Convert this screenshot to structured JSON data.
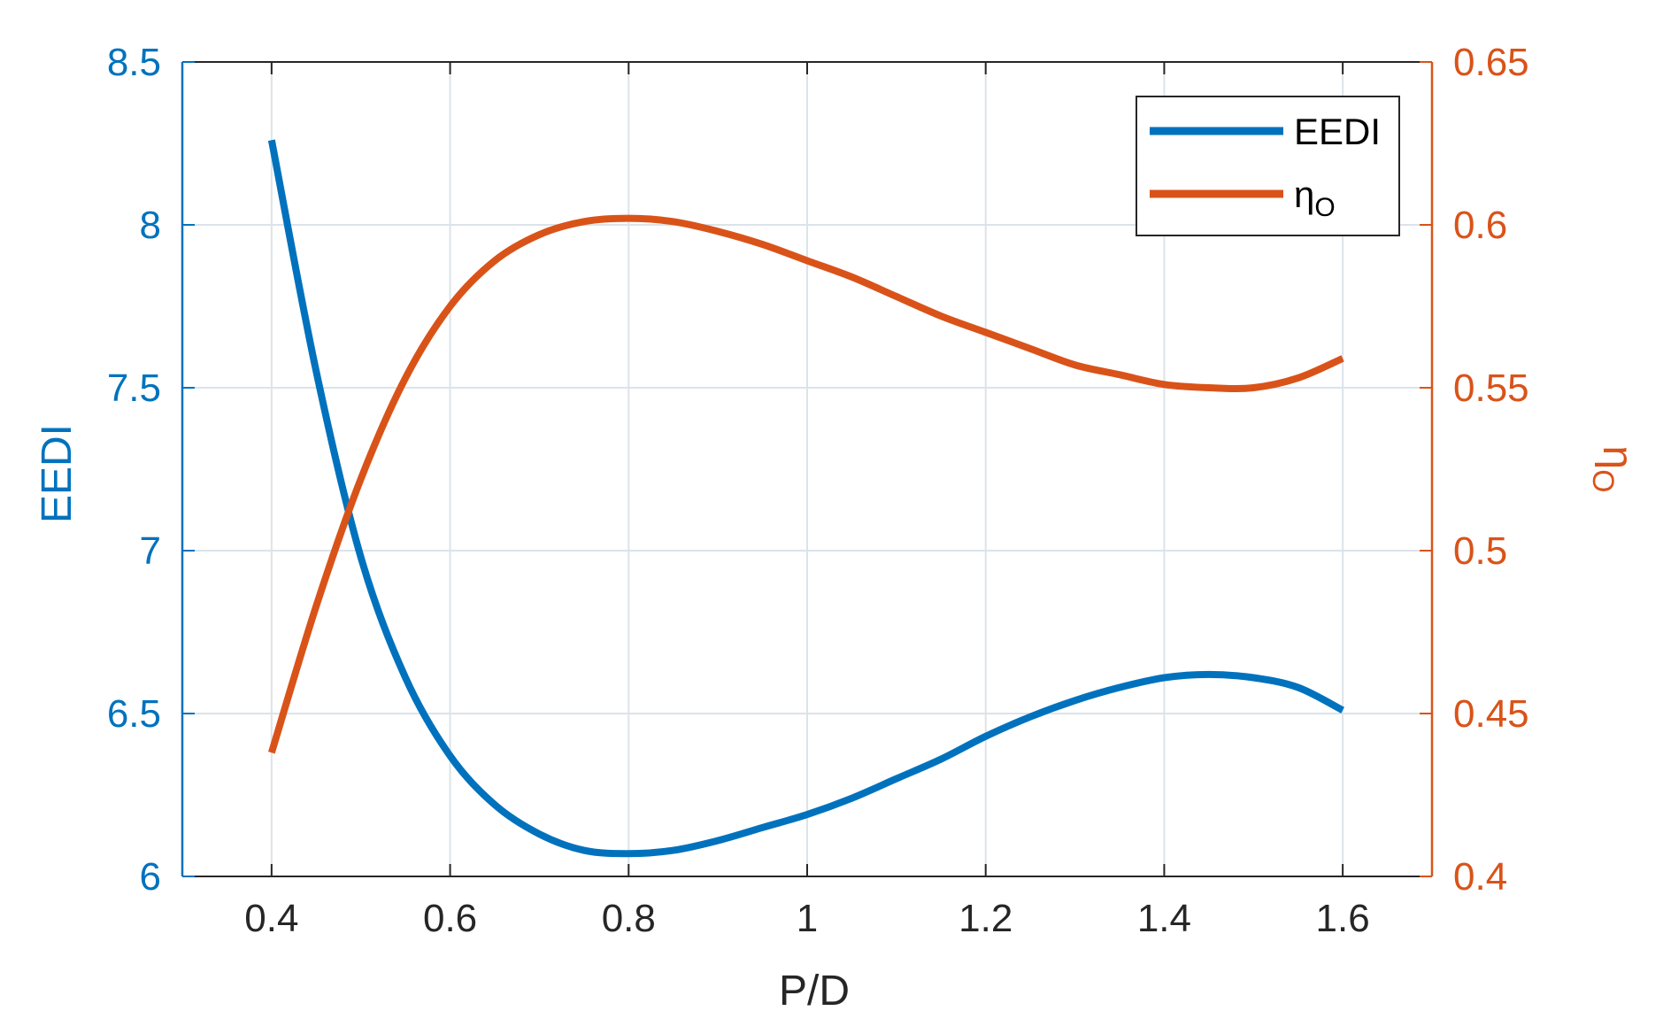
{
  "colors": {
    "left_axis": "#0072BD",
    "right_axis": "#D95319",
    "x_axis": "#262626",
    "grid": "#DCE3EA",
    "background": "#ffffff"
  },
  "chart_data": {
    "type": "line",
    "title": "",
    "xlabel": "P/D",
    "ylabel_left": "EEDI",
    "ylabel_right": "η",
    "ylabel_right_sub": "O",
    "xlim": [
      0.3,
      1.7
    ],
    "ylim_left": [
      6,
      8.5
    ],
    "ylim_right": [
      0.4,
      0.65
    ],
    "x_ticks": [
      0.4,
      0.6,
      0.8,
      1,
      1.2,
      1.4,
      1.6
    ],
    "x_tick_labels": [
      "0.4",
      "0.6",
      "0.8",
      "1",
      "1.2",
      "1.4",
      "1.6"
    ],
    "y_ticks_left": [
      6,
      6.5,
      7,
      7.5,
      8,
      8.5
    ],
    "y_tick_labels_left": [
      "6",
      "6.5",
      "7",
      "7.5",
      "8",
      "8.5"
    ],
    "y_ticks_right": [
      0.4,
      0.45,
      0.5,
      0.55,
      0.6,
      0.65
    ],
    "y_tick_labels_right": [
      "0.4",
      "0.45",
      "0.5",
      "0.55",
      "0.6",
      "0.65"
    ],
    "grid": true,
    "legend_position": "top-right",
    "series": [
      {
        "name": "EEDI",
        "axis": "left",
        "color": "#0072BD",
        "x": [
          0.4,
          0.45,
          0.5,
          0.55,
          0.6,
          0.65,
          0.7,
          0.75,
          0.8,
          0.85,
          0.9,
          0.95,
          1.0,
          1.05,
          1.1,
          1.15,
          1.2,
          1.25,
          1.3,
          1.35,
          1.4,
          1.45,
          1.5,
          1.55,
          1.6
        ],
        "y": [
          8.26,
          7.55,
          6.98,
          6.61,
          6.37,
          6.22,
          6.13,
          6.08,
          6.07,
          6.08,
          6.11,
          6.15,
          6.19,
          6.24,
          6.3,
          6.36,
          6.43,
          6.49,
          6.54,
          6.58,
          6.61,
          6.62,
          6.61,
          6.58,
          6.51
        ]
      },
      {
        "name": "η",
        "name_sub": "O",
        "axis": "right",
        "color": "#D95319",
        "x": [
          0.4,
          0.45,
          0.5,
          0.55,
          0.6,
          0.65,
          0.7,
          0.75,
          0.8,
          0.85,
          0.9,
          0.95,
          1.0,
          1.05,
          1.1,
          1.15,
          1.2,
          1.25,
          1.3,
          1.35,
          1.4,
          1.45,
          1.5,
          1.55,
          1.6
        ],
        "y": [
          0.438,
          0.483,
          0.522,
          0.553,
          0.575,
          0.589,
          0.597,
          0.601,
          0.602,
          0.601,
          0.598,
          0.594,
          0.589,
          0.584,
          0.578,
          0.572,
          0.567,
          0.562,
          0.557,
          0.554,
          0.551,
          0.55,
          0.55,
          0.553,
          0.559
        ]
      }
    ]
  }
}
